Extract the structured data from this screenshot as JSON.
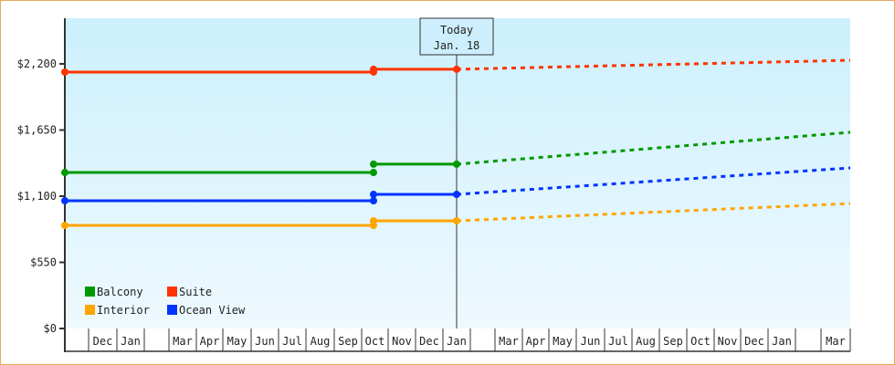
{
  "chart_data": {
    "type": "line",
    "title": "",
    "xlabel": "",
    "ylabel": "",
    "ylim": [
      0,
      2420
    ],
    "y_ticks": [
      {
        "value": 0,
        "label": "$0"
      },
      {
        "value": 550,
        "label": "$550"
      },
      {
        "value": 1100,
        "label": "$1,100"
      },
      {
        "value": 1650,
        "label": "$1,650"
      },
      {
        "value": 2200,
        "label": "$2,200"
      }
    ],
    "x_tick_labels": [
      "",
      "Dec",
      "Jan",
      "",
      "Mar",
      "Apr",
      "May",
      "Jun",
      "Jul",
      "Aug",
      "Sep",
      "Oct",
      "Nov",
      "Dec",
      "Jan",
      "",
      "Mar",
      "Apr",
      "May",
      "Jun",
      "Jul",
      "Aug",
      "Sep",
      "Oct",
      "Nov",
      "Dec",
      "Jan",
      "",
      "Mar"
    ],
    "today_marker": {
      "line1": "Today",
      "line2": "Jan. 18"
    },
    "legend": [
      {
        "name": "Balcony",
        "color": "#009900"
      },
      {
        "name": "Suite",
        "color": "#ff3300"
      },
      {
        "name": "Interior",
        "color": "#ffa500"
      },
      {
        "name": "Ocean View",
        "color": "#0033ff"
      }
    ],
    "grid": false,
    "legend_position": "bottom-left inside plot",
    "series": [
      {
        "name": "Suite",
        "color": "#ff3300",
        "actual": [
          {
            "x": "Nov (start)",
            "value": 2132
          },
          {
            "x": "Oct",
            "value": 2132
          },
          {
            "x": "Oct",
            "value": 2155
          },
          {
            "x": "Jan 18",
            "value": 2155
          }
        ],
        "projected": [
          {
            "x": "Jan 18",
            "value": 2155
          },
          {
            "x": "Mar (end)",
            "value": 2230
          }
        ]
      },
      {
        "name": "Balcony",
        "color": "#009900",
        "actual": [
          {
            "x": "Nov (start)",
            "value": 1297
          },
          {
            "x": "Oct",
            "value": 1297
          },
          {
            "x": "Oct",
            "value": 1366
          },
          {
            "x": "Jan 18",
            "value": 1366
          }
        ],
        "projected": [
          {
            "x": "Jan 18",
            "value": 1366
          },
          {
            "x": "Mar (end)",
            "value": 1631
          }
        ]
      },
      {
        "name": "Ocean View",
        "color": "#0033ff",
        "actual": [
          {
            "x": "Nov (start)",
            "value": 1062
          },
          {
            "x": "Oct",
            "value": 1062
          },
          {
            "x": "Oct",
            "value": 1115
          },
          {
            "x": "Jan 18",
            "value": 1115
          }
        ],
        "projected": [
          {
            "x": "Jan 18",
            "value": 1115
          },
          {
            "x": "Mar (end)",
            "value": 1335
          }
        ]
      },
      {
        "name": "Interior",
        "color": "#ffa500",
        "actual": [
          {
            "x": "Nov (start)",
            "value": 857
          },
          {
            "x": "Oct",
            "value": 857
          },
          {
            "x": "Oct",
            "value": 895
          },
          {
            "x": "Jan 18",
            "value": 895
          }
        ],
        "projected": [
          {
            "x": "Jan 18",
            "value": 895
          },
          {
            "x": "Mar (end)",
            "value": 1039
          }
        ]
      }
    ]
  }
}
